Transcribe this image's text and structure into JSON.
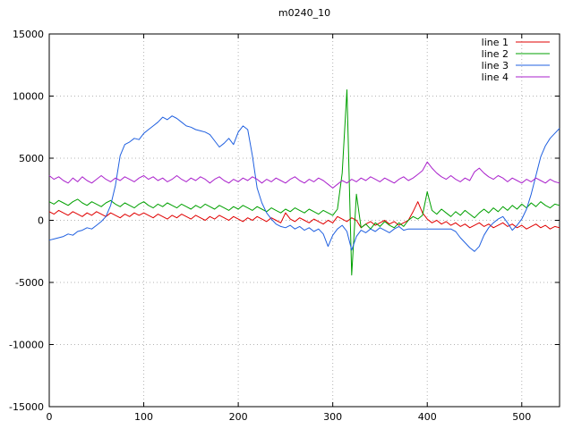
{
  "page": {
    "background": "#ffffff",
    "grid_color": "#b4b4b4",
    "border_color": "#000000"
  },
  "chart_data": {
    "type": "line",
    "title": "m0240_10",
    "xlabel": "",
    "ylabel": "",
    "xlim": [
      0,
      540
    ],
    "ylim": [
      -15000,
      15000
    ],
    "x_ticks": [
      0,
      100,
      200,
      300,
      400,
      500
    ],
    "y_ticks": [
      -15000,
      -10000,
      -5000,
      0,
      5000,
      10000,
      15000
    ],
    "grid": true,
    "grid_style": "dotted",
    "legend_position": "top-right-inside",
    "x_start": 0,
    "x_step": 5,
    "series": [
      {
        "name": "line 1",
        "color": "#e00000",
        "values": [
          700,
          500,
          800,
          600,
          400,
          700,
          500,
          300,
          600,
          400,
          700,
          500,
          300,
          600,
          400,
          200,
          500,
          300,
          600,
          400,
          600,
          400,
          200,
          500,
          300,
          100,
          400,
          200,
          500,
          300,
          100,
          400,
          200,
          0,
          300,
          100,
          400,
          200,
          0,
          300,
          100,
          -100,
          200,
          0,
          300,
          100,
          -100,
          200,
          0,
          -200,
          600,
          100,
          -100,
          200,
          0,
          -200,
          100,
          -100,
          -300,
          0,
          -200,
          300,
          100,
          -100,
          200,
          0,
          -600,
          -300,
          -100,
          -400,
          -200,
          0,
          -300,
          -100,
          -400,
          -200,
          0,
          700,
          1500,
          600,
          100,
          -200,
          0,
          -300,
          -100,
          -400,
          -200,
          -500,
          -300,
          -600,
          -400,
          -200,
          -500,
          -300,
          -600,
          -400,
          -200,
          -500,
          -300,
          -600,
          -400,
          -700,
          -500,
          -300,
          -600,
          -400,
          -700,
          -500,
          -600
        ]
      },
      {
        "name": "line 2",
        "color": "#00a000",
        "values": [
          1500,
          1300,
          1600,
          1400,
          1200,
          1500,
          1700,
          1400,
          1200,
          1500,
          1300,
          1100,
          1400,
          1600,
          1300,
          1100,
          1400,
          1200,
          1000,
          1300,
          1500,
          1200,
          1000,
          1300,
          1100,
          1400,
          1200,
          1000,
          1300,
          1100,
          900,
          1200,
          1000,
          1300,
          1100,
          900,
          1200,
          1000,
          800,
          1100,
          900,
          1200,
          1000,
          800,
          1100,
          900,
          700,
          1000,
          800,
          600,
          900,
          700,
          1000,
          800,
          600,
          900,
          700,
          500,
          800,
          600,
          400,
          900,
          3800,
          10500,
          -4400,
          2100,
          -600,
          -300,
          -700,
          -200,
          -500,
          -100,
          -400,
          -600,
          -200,
          -500,
          0,
          300,
          100,
          400,
          2300,
          800,
          500,
          900,
          600,
          300,
          700,
          400,
          800,
          500,
          200,
          600,
          900,
          600,
          1000,
          700,
          1100,
          800,
          1200,
          900,
          1300,
          1000,
          1400,
          1100,
          1500,
          1200,
          1000,
          1300,
          1200
        ]
      },
      {
        "name": "line 3",
        "color": "#2060e0",
        "values": [
          -1600,
          -1500,
          -1400,
          -1300,
          -1100,
          -1200,
          -900,
          -800,
          -600,
          -700,
          -400,
          -100,
          300,
          1200,
          2800,
          5200,
          6100,
          6300,
          6600,
          6500,
          7000,
          7300,
          7600,
          7900,
          8300,
          8100,
          8400,
          8200,
          7900,
          7600,
          7500,
          7300,
          7200,
          7100,
          6900,
          6400,
          5900,
          6200,
          6600,
          6100,
          7100,
          7600,
          7300,
          5200,
          2600,
          1400,
          600,
          100,
          -300,
          -500,
          -600,
          -400,
          -700,
          -500,
          -800,
          -600,
          -900,
          -700,
          -1100,
          -2100,
          -1200,
          -700,
          -400,
          -900,
          -2400,
          -1300,
          -800,
          -1000,
          -700,
          -900,
          -600,
          -800,
          -1000,
          -700,
          -500,
          -800,
          -700,
          -700,
          -700,
          -700,
          -700,
          -700,
          -700,
          -700,
          -700,
          -700,
          -900,
          -1400,
          -1800,
          -2200,
          -2500,
          -2100,
          -1200,
          -600,
          -200,
          100,
          300,
          -200,
          -800,
          -400,
          100,
          900,
          2100,
          3600,
          5100,
          6000,
          6600,
          7000,
          7400
        ]
      },
      {
        "name": "line 4",
        "color": "#aa22cc",
        "values": [
          3600,
          3300,
          3500,
          3200,
          3000,
          3400,
          3100,
          3500,
          3200,
          3000,
          3300,
          3600,
          3300,
          3100,
          3400,
          3200,
          3500,
          3300,
          3100,
          3400,
          3600,
          3300,
          3500,
          3200,
          3400,
          3100,
          3300,
          3600,
          3300,
          3100,
          3400,
          3200,
          3500,
          3300,
          3000,
          3300,
          3500,
          3200,
          3000,
          3300,
          3100,
          3400,
          3200,
          3500,
          3300,
          3000,
          3300,
          3100,
          3400,
          3200,
          3000,
          3300,
          3500,
          3200,
          3000,
          3300,
          3100,
          3400,
          3200,
          2900,
          2600,
          2900,
          3200,
          3000,
          3300,
          3100,
          3400,
          3200,
          3500,
          3300,
          3100,
          3400,
          3200,
          3000,
          3300,
          3500,
          3200,
          3400,
          3700,
          4000,
          4700,
          4200,
          3800,
          3500,
          3300,
          3600,
          3300,
          3100,
          3400,
          3200,
          3900,
          4200,
          3800,
          3500,
          3300,
          3600,
          3400,
          3100,
          3400,
          3200,
          3000,
          3300,
          3100,
          3400,
          3200,
          3000,
          3300,
          3100,
          3000
        ]
      }
    ]
  }
}
